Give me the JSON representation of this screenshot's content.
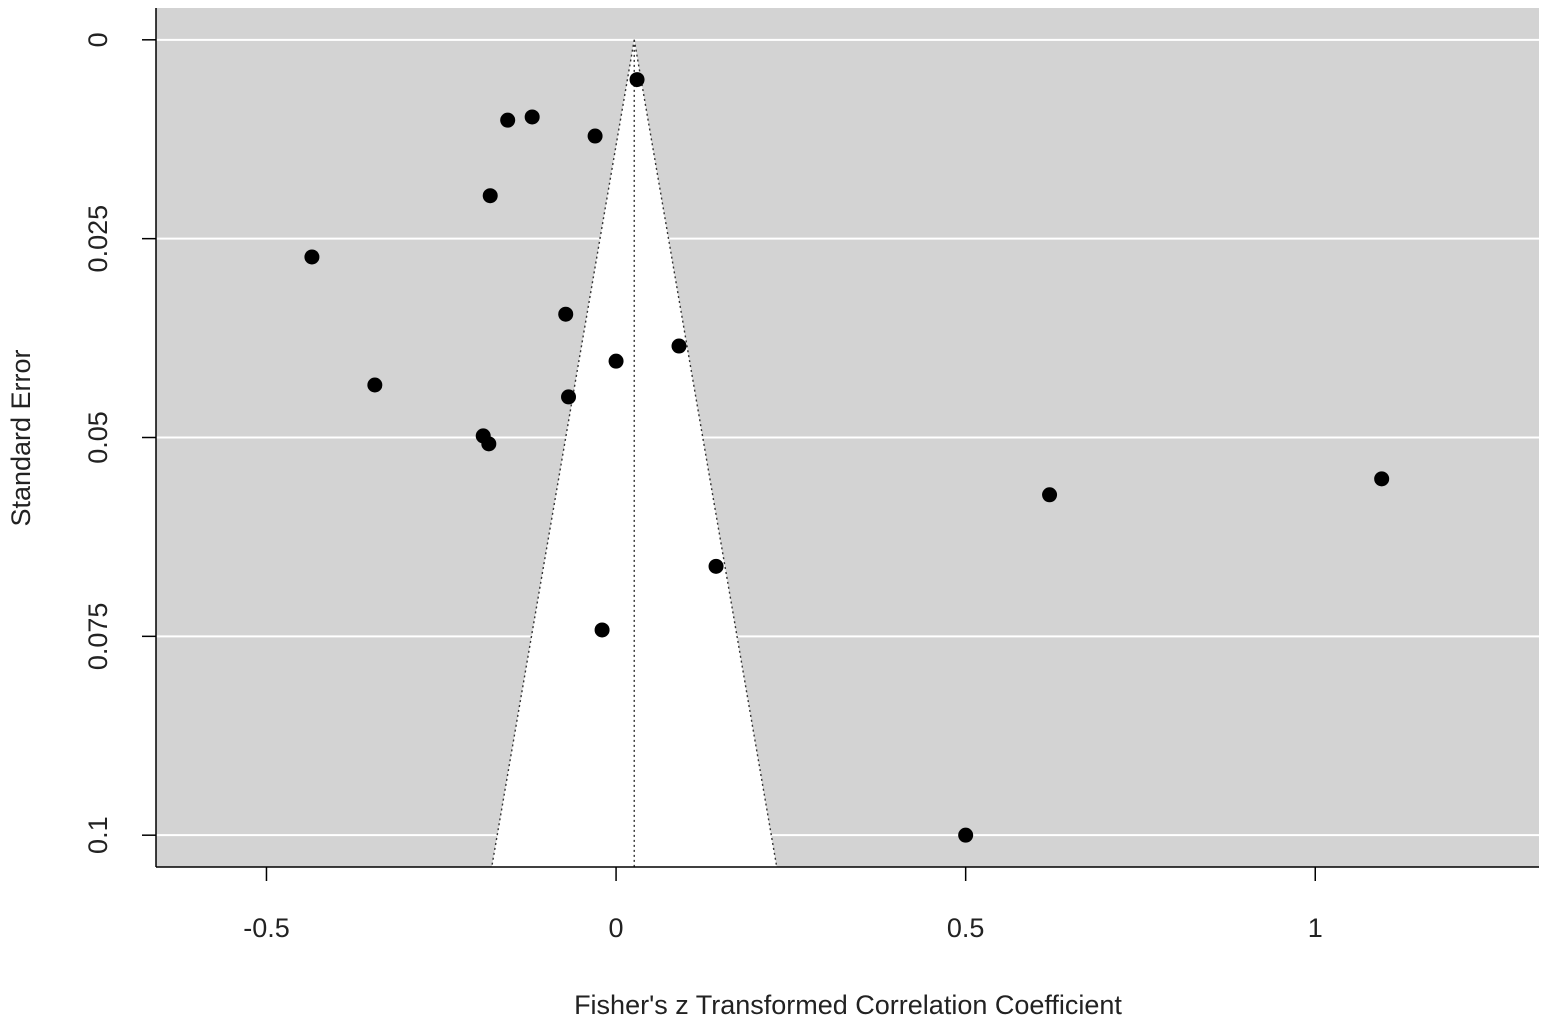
{
  "chart_data": {
    "type": "scatter",
    "subtype": "funnel",
    "title": "",
    "xlabel": "Fisher's z Transformed Correlation Coefficient",
    "ylabel": "Standard Error",
    "xlim": [
      -0.658,
      1.32
    ],
    "ylim": [
      0.104,
      -0.004
    ],
    "y_reversed": true,
    "x_ticks": [
      {
        "value": -0.5,
        "label": "-0.5"
      },
      {
        "value": 0,
        "label": "0"
      },
      {
        "value": 0.5,
        "label": "0.5"
      },
      {
        "value": 1,
        "label": "1"
      }
    ],
    "y_ticks": [
      {
        "value": 0,
        "label": "0"
      },
      {
        "value": 0.025,
        "label": "0.025"
      },
      {
        "value": 0.05,
        "label": "0.05"
      },
      {
        "value": 0.075,
        "label": "0.075"
      },
      {
        "value": 0.1,
        "label": "0.1"
      }
    ],
    "grid": "horizontal",
    "funnel": {
      "center": 0.026,
      "se_max": 0.104,
      "z_multiplier": 1.96
    },
    "points": [
      {
        "x": 0.03,
        "y": 0.005
      },
      {
        "x": -0.12,
        "y": 0.0097
      },
      {
        "x": -0.155,
        "y": 0.0101
      },
      {
        "x": -0.03,
        "y": 0.0121
      },
      {
        "x": -0.18,
        "y": 0.0196
      },
      {
        "x": -0.435,
        "y": 0.0273
      },
      {
        "x": -0.072,
        "y": 0.0345
      },
      {
        "x": 0.09,
        "y": 0.0385
      },
      {
        "x": 0.0,
        "y": 0.0404
      },
      {
        "x": -0.345,
        "y": 0.0434
      },
      {
        "x": -0.068,
        "y": 0.0449
      },
      {
        "x": -0.19,
        "y": 0.0498
      },
      {
        "x": -0.182,
        "y": 0.0508
      },
      {
        "x": 0.62,
        "y": 0.0572
      },
      {
        "x": 1.095,
        "y": 0.0552
      },
      {
        "x": 0.143,
        "y": 0.0662
      },
      {
        "x": -0.02,
        "y": 0.0742
      },
      {
        "x": 0.5,
        "y": 0.1
      }
    ],
    "colors": {
      "panel": "#d3d3d3",
      "funnel": "#ffffff",
      "gridline": "#ffffff",
      "point": "#000000",
      "axis": "#000000"
    }
  }
}
